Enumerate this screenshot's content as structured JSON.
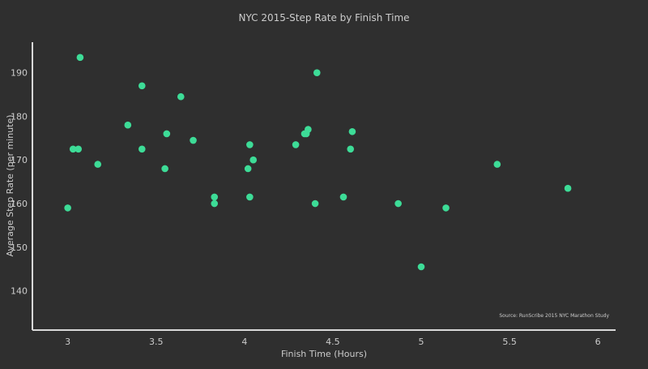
{
  "chart_data": {
    "type": "scatter",
    "title": "NYC 2015-Step Rate by Finish Time",
    "xlabel": "Finish Time (Hours)",
    "ylabel": "Average Step Rate (per minute)",
    "xlim": [
      2.8,
      6.1
    ],
    "ylim": [
      131,
      197
    ],
    "xticks": [
      3,
      3.5,
      4,
      4.5,
      5,
      5.5,
      6
    ],
    "xtick_labels": [
      "3",
      "3.5",
      "4",
      "4.5",
      "5",
      "5.5",
      "6"
    ],
    "yticks": [
      140,
      150,
      160,
      170,
      180,
      190
    ],
    "ytick_labels": [
      "140",
      "150",
      "160",
      "170",
      "180",
      "190"
    ],
    "grid": false,
    "annotation": "Source: RunScribe 2015 NYC Marathon Study",
    "colors": {
      "background": "#2f2f2f",
      "marker": "#3ddc97",
      "axis": "#d8d8d8",
      "text": "#cccccc"
    },
    "series": [
      {
        "points": [
          {
            "x": 3.0,
            "y": 159
          },
          {
            "x": 3.03,
            "y": 172.5
          },
          {
            "x": 3.06,
            "y": 172.5
          },
          {
            "x": 3.07,
            "y": 193.5
          },
          {
            "x": 3.17,
            "y": 169
          },
          {
            "x": 3.34,
            "y": 178
          },
          {
            "x": 3.42,
            "y": 187
          },
          {
            "x": 3.42,
            "y": 172.5
          },
          {
            "x": 3.55,
            "y": 168
          },
          {
            "x": 3.56,
            "y": 176
          },
          {
            "x": 3.64,
            "y": 184.5
          },
          {
            "x": 3.71,
            "y": 174.5
          },
          {
            "x": 3.83,
            "y": 161.5
          },
          {
            "x": 3.83,
            "y": 160
          },
          {
            "x": 4.02,
            "y": 168
          },
          {
            "x": 4.03,
            "y": 173.5
          },
          {
            "x": 4.03,
            "y": 161.5
          },
          {
            "x": 4.05,
            "y": 170
          },
          {
            "x": 4.29,
            "y": 173.5
          },
          {
            "x": 4.34,
            "y": 176
          },
          {
            "x": 4.35,
            "y": 176
          },
          {
            "x": 4.36,
            "y": 177
          },
          {
            "x": 4.41,
            "y": 190
          },
          {
            "x": 4.4,
            "y": 160
          },
          {
            "x": 4.56,
            "y": 161.5
          },
          {
            "x": 4.6,
            "y": 172.5
          },
          {
            "x": 4.61,
            "y": 176.5
          },
          {
            "x": 4.87,
            "y": 160
          },
          {
            "x": 5.0,
            "y": 145.5
          },
          {
            "x": 5.14,
            "y": 159
          },
          {
            "x": 5.43,
            "y": 169
          },
          {
            "x": 5.83,
            "y": 163.5
          }
        ]
      }
    ]
  }
}
